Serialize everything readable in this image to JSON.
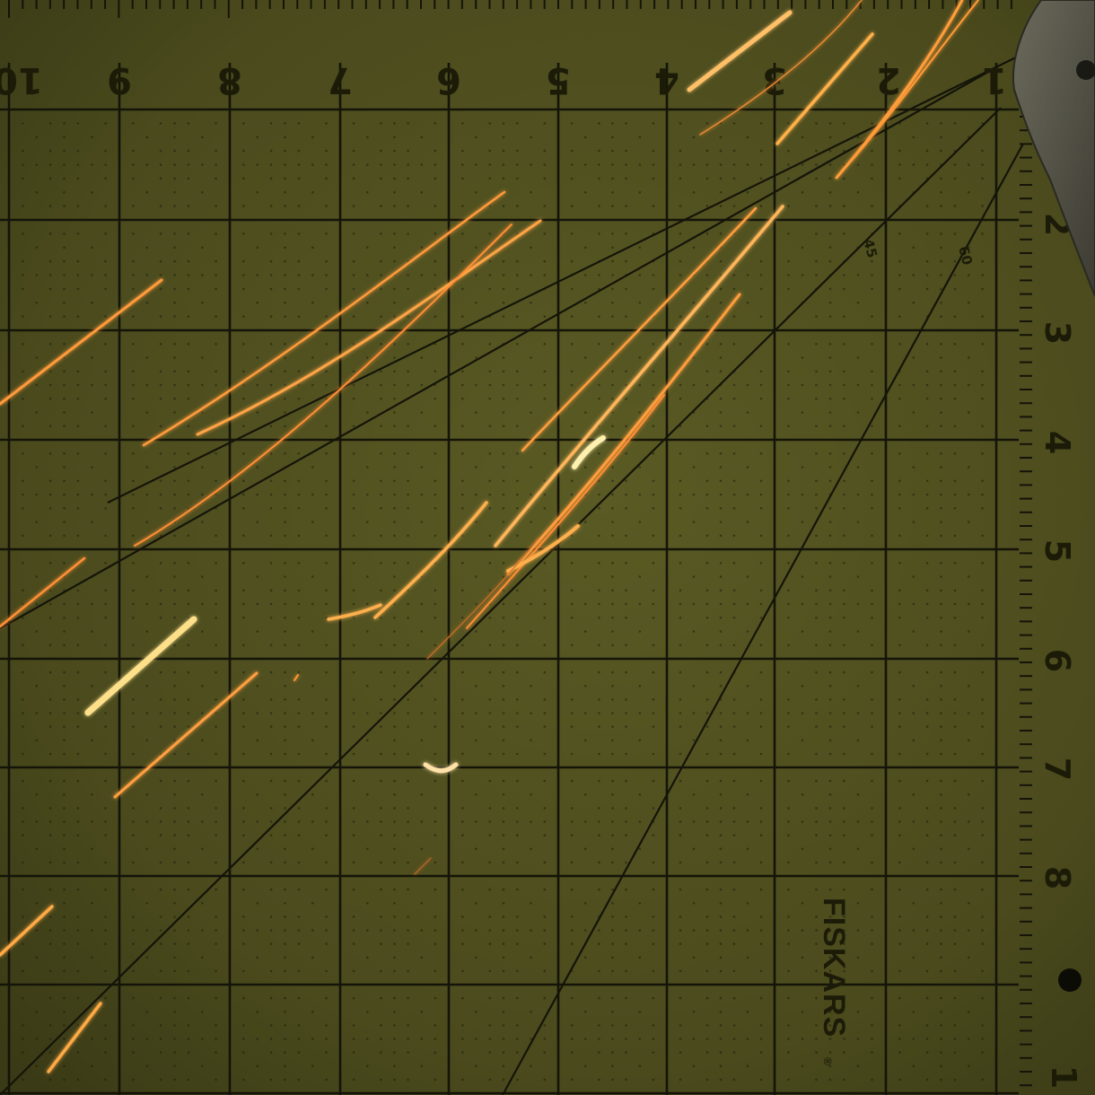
{
  "photo": {
    "subject": "sparks",
    "mat_color": "#50501f",
    "grid_color": "#15150a",
    "spark_color": "#ffb347"
  },
  "ruler": {
    "top_numbers": [
      "10",
      "9",
      "8",
      "7",
      "6",
      "5",
      "4",
      "3",
      "2",
      "1"
    ],
    "right_numbers": [
      "2",
      "3",
      "4",
      "5",
      "6",
      "7",
      "8",
      "1"
    ],
    "angle_labels": [
      "45",
      "60"
    ]
  },
  "brand": {
    "text": "FISKARS",
    "mark": "®"
  }
}
